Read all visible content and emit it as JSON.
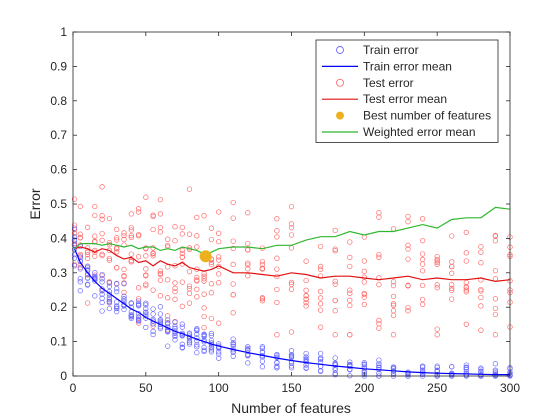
{
  "chart_data": {
    "type": "scatter",
    "title": "",
    "xlabel": "Number of features",
    "ylabel": "Error",
    "xlim": [
      0,
      300
    ],
    "ylim": [
      0,
      1
    ],
    "xticks": [
      0,
      50,
      100,
      150,
      200,
      250,
      300
    ],
    "yticks": [
      0,
      0.1,
      0.2,
      0.3,
      0.4,
      0.5,
      0.6,
      0.7,
      0.8,
      0.9,
      1
    ],
    "grid": false,
    "legend_position": "top-right",
    "colors": {
      "train": "#0000ff",
      "test": "#ff0000",
      "test_mean": "#e01010",
      "best": "#edb120",
      "weighted": "#2fb82f"
    },
    "legend": [
      {
        "label": "Train error",
        "style": "circle",
        "color": "#6b6bff"
      },
      {
        "label": "Train error mean",
        "style": "line",
        "color": "#0000ff"
      },
      {
        "label": "Test error",
        "style": "circle",
        "color": "#ff7070"
      },
      {
        "label": "Test error mean",
        "style": "line",
        "color": "#e01010"
      },
      {
        "label": "Best number of features",
        "style": "dot",
        "color": "#edb120"
      },
      {
        "label": "Weighted error mean",
        "style": "line",
        "color": "#2fb82f"
      }
    ],
    "x_values": [
      1,
      5,
      10,
      15,
      20,
      25,
      30,
      35,
      40,
      45,
      50,
      55,
      60,
      65,
      70,
      75,
      80,
      85,
      90,
      95,
      100,
      110,
      120,
      130,
      140,
      150,
      160,
      170,
      180,
      190,
      200,
      210,
      220,
      230,
      240,
      250,
      260,
      270,
      280,
      290,
      300
    ],
    "series": [
      {
        "name": "Train error mean",
        "values": [
          0.37,
          0.33,
          0.3,
          0.275,
          0.255,
          0.24,
          0.225,
          0.21,
          0.195,
          0.185,
          0.17,
          0.16,
          0.15,
          0.14,
          0.13,
          0.123,
          0.115,
          0.107,
          0.1,
          0.093,
          0.087,
          0.077,
          0.068,
          0.06,
          0.052,
          0.045,
          0.039,
          0.034,
          0.029,
          0.025,
          0.021,
          0.018,
          0.015,
          0.012,
          0.01,
          0.008,
          0.007,
          0.006,
          0.005,
          0.004,
          0.004
        ]
      },
      {
        "name": "Test error mean",
        "values": [
          0.37,
          0.375,
          0.37,
          0.36,
          0.37,
          0.365,
          0.35,
          0.34,
          0.345,
          0.33,
          0.335,
          0.32,
          0.335,
          0.325,
          0.32,
          0.33,
          0.315,
          0.31,
          0.305,
          0.31,
          0.32,
          0.3,
          0.3,
          0.295,
          0.29,
          0.3,
          0.295,
          0.285,
          0.29,
          0.29,
          0.285,
          0.28,
          0.285,
          0.29,
          0.28,
          0.285,
          0.28,
          0.28,
          0.285,
          0.275,
          0.28
        ]
      },
      {
        "name": "Weighted error mean",
        "values": [
          0.37,
          0.385,
          0.385,
          0.385,
          0.38,
          0.385,
          0.38,
          0.375,
          0.38,
          0.37,
          0.375,
          0.375,
          0.365,
          0.37,
          0.365,
          0.375,
          0.37,
          0.365,
          0.355,
          0.36,
          0.37,
          0.375,
          0.375,
          0.37,
          0.38,
          0.38,
          0.395,
          0.405,
          0.405,
          0.42,
          0.41,
          0.42,
          0.42,
          0.43,
          0.44,
          0.43,
          0.455,
          0.46,
          0.46,
          0.49,
          0.485
        ]
      }
    ],
    "scatter_spread": {
      "train": 0.03,
      "test": 0.085,
      "points_per_x": 9
    },
    "best": {
      "x": 91,
      "y": 0.348
    }
  }
}
